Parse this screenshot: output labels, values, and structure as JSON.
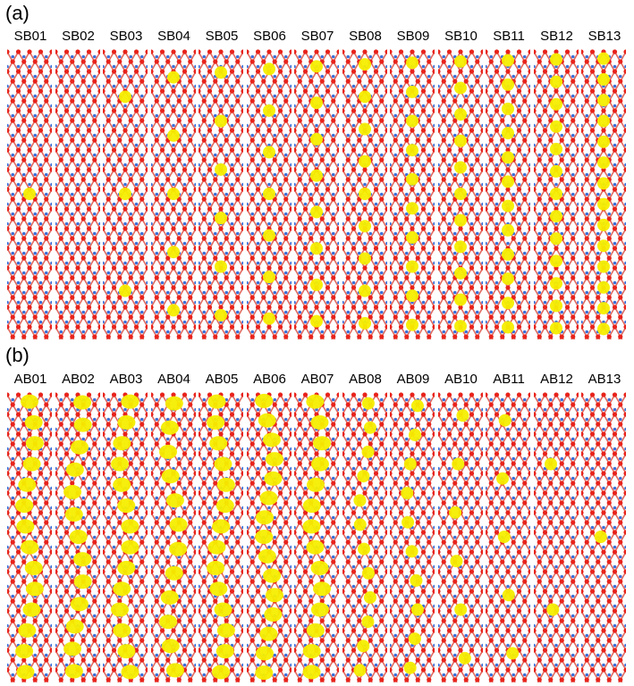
{
  "panels": [
    {
      "letter": "(a)",
      "labels": [
        "SB01",
        "SB02",
        "SB03",
        "SB04",
        "SB05",
        "SB06",
        "SB07",
        "SB08",
        "SB09",
        "SB10",
        "SB11",
        "SB12",
        "SB13"
      ]
    },
    {
      "letter": "(b)",
      "labels": [
        "AB01",
        "AB02",
        "AB03",
        "AB04",
        "AB05",
        "AB06",
        "AB07",
        "AB08",
        "AB09",
        "AB10",
        "AB11",
        "AB12",
        "AB13"
      ]
    }
  ],
  "colors": {
    "atom_red": "#e8231b",
    "atom_blue": "#3a6fd8",
    "bond_red": "#e06a60",
    "density_yellow": "#f5ee00",
    "background": "#ffffff"
  }
}
